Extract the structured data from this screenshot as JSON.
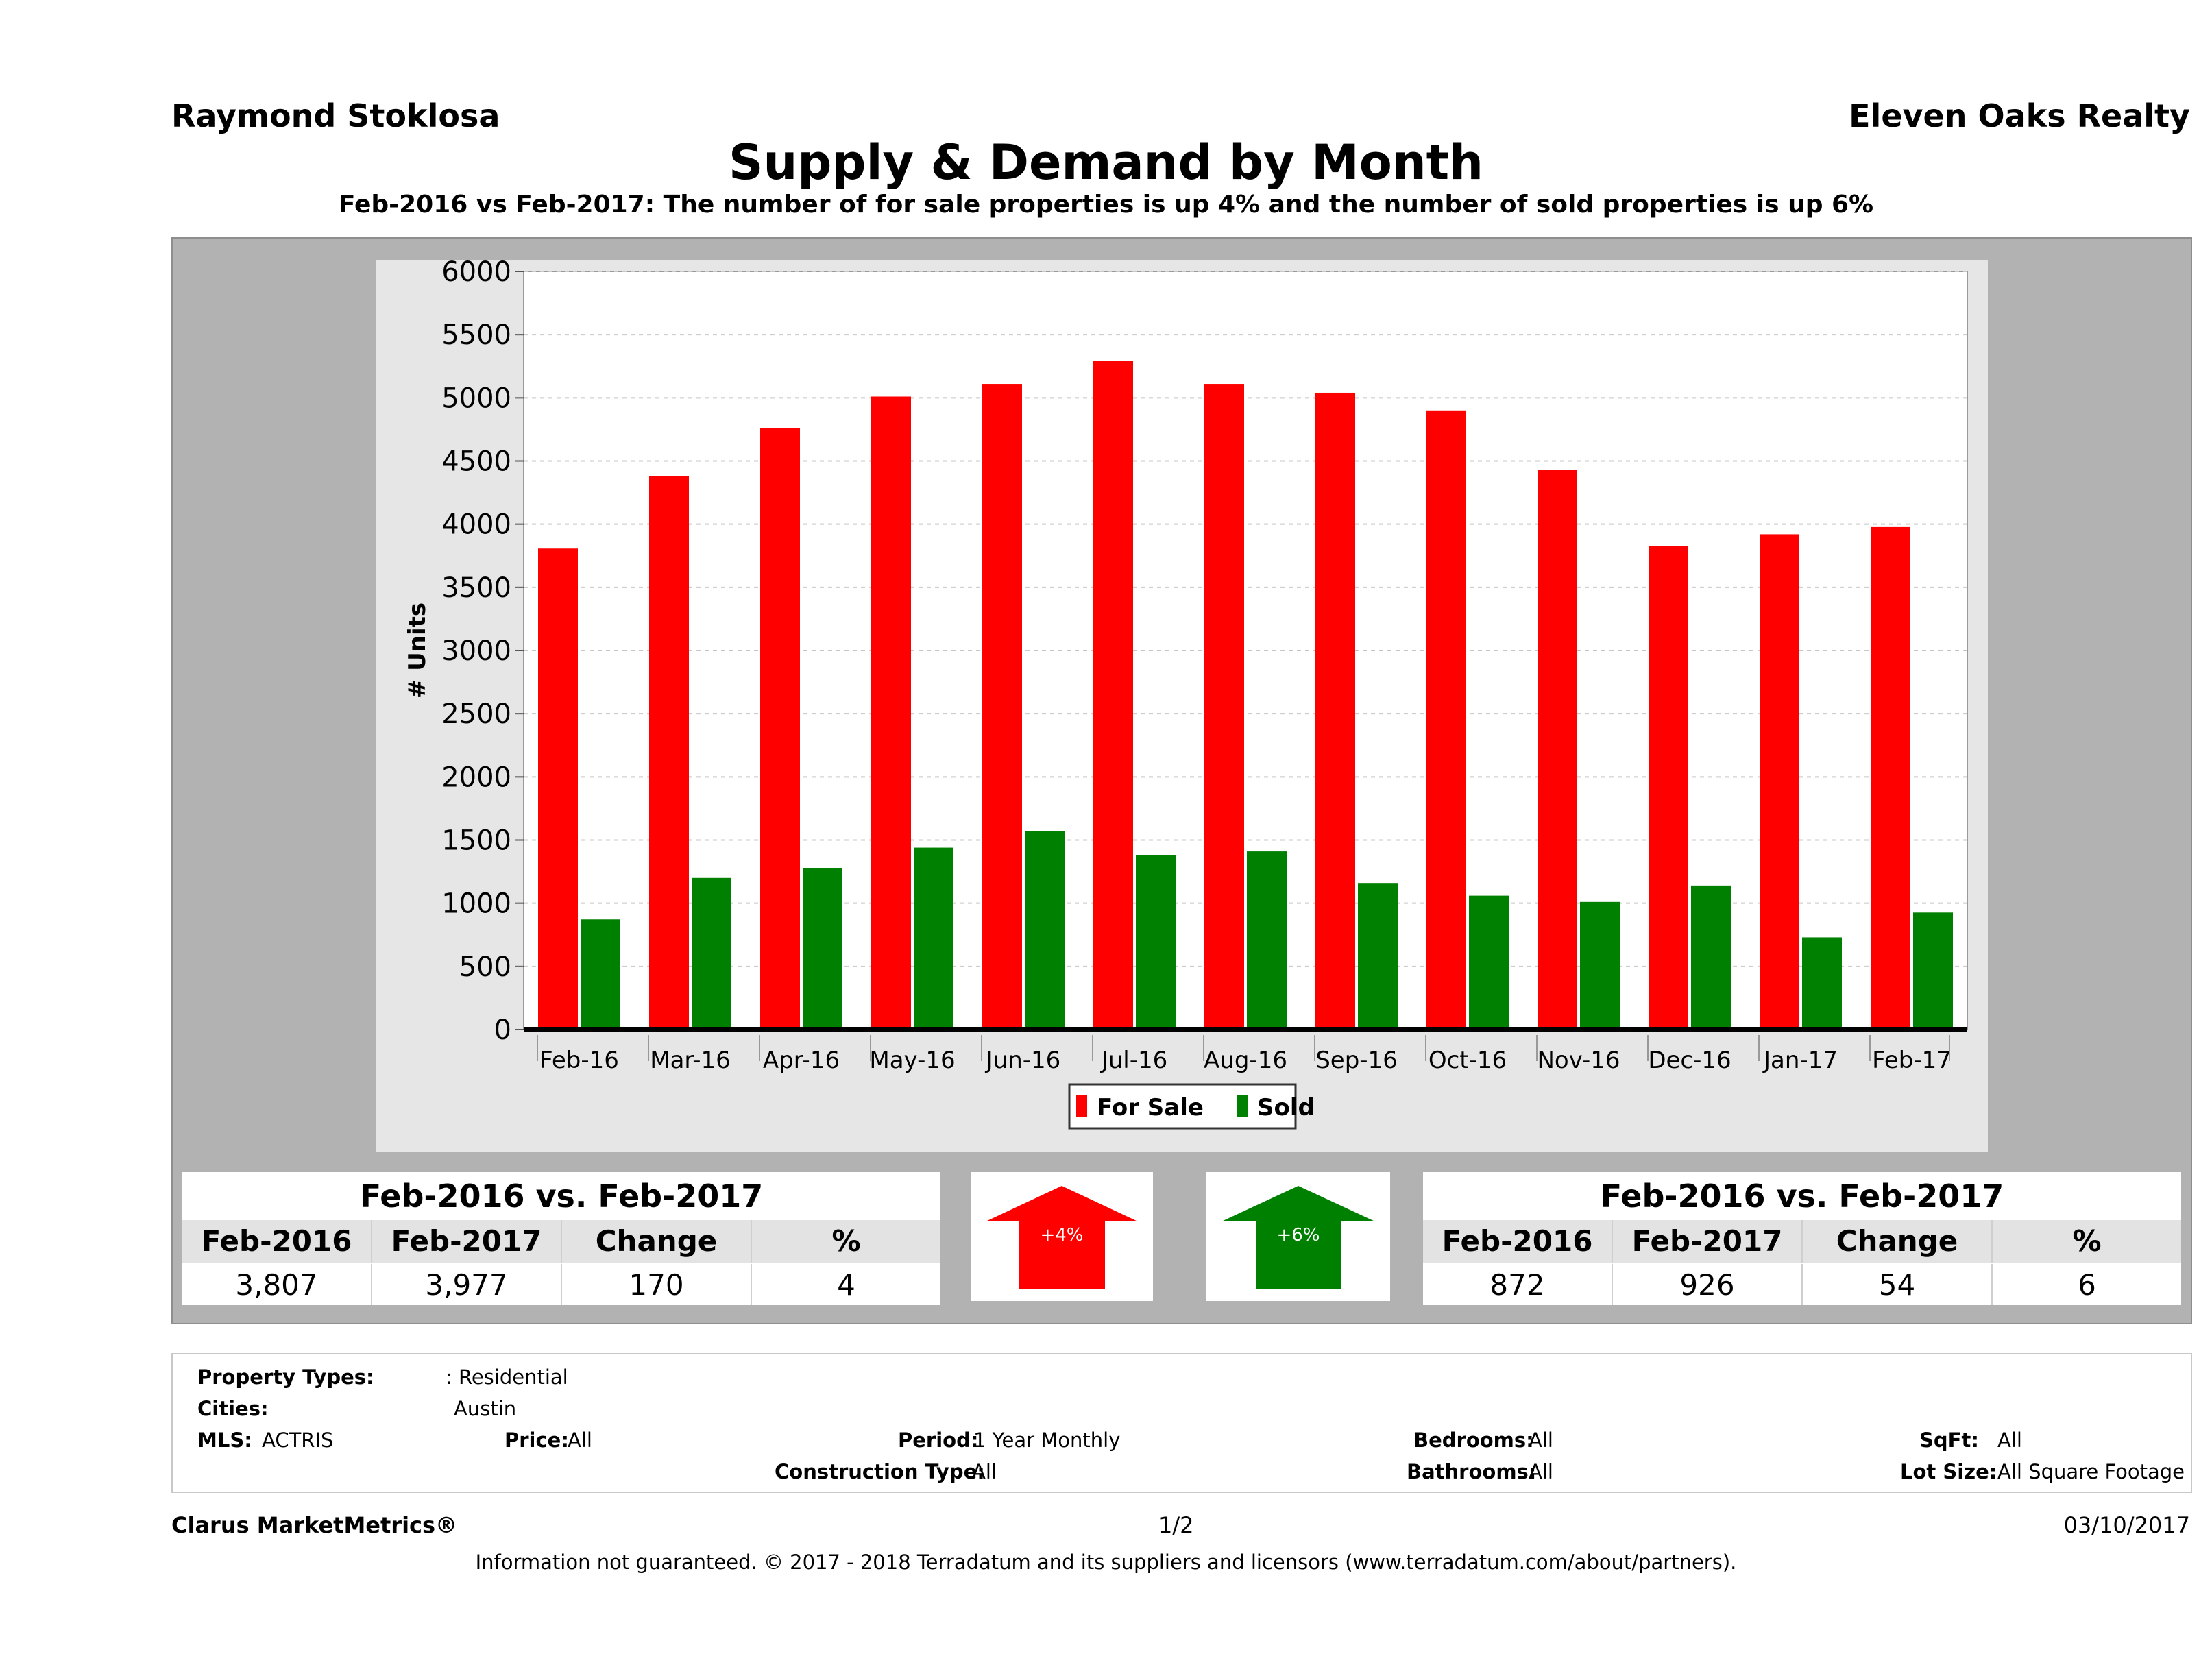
{
  "header": {
    "agent": "Raymond Stoklosa",
    "brokerage": "Eleven Oaks Realty",
    "title": "Supply & Demand by Month",
    "subtitle": "Feb-2016 vs Feb-2017: The number of for sale properties is up 4% and the number of sold properties is up 6%"
  },
  "chart_data": {
    "type": "bar",
    "ylabel": "# Units",
    "xlabel": "",
    "ylim": [
      0,
      6000
    ],
    "yticks": [
      0,
      500,
      1000,
      1500,
      2000,
      2500,
      3000,
      3500,
      4000,
      4500,
      5000,
      5500,
      6000
    ],
    "grid": true,
    "legend_position": "bottom",
    "categories": [
      "Feb-16",
      "Mar-16",
      "Apr-16",
      "May-16",
      "Jun-16",
      "Jul-16",
      "Aug-16",
      "Sep-16",
      "Oct-16",
      "Nov-16",
      "Dec-16",
      "Jan-17",
      "Feb-17"
    ],
    "series": [
      {
        "name": "For Sale",
        "color": "#ff0000",
        "values": [
          3807,
          4380,
          4760,
          5010,
          5110,
          5290,
          5110,
          5040,
          4900,
          4430,
          3830,
          3920,
          3977
        ]
      },
      {
        "name": "Sold",
        "color": "#008000",
        "values": [
          872,
          1200,
          1280,
          1440,
          1570,
          1380,
          1410,
          1160,
          1060,
          1010,
          1140,
          730,
          926
        ]
      }
    ]
  },
  "summary_left": {
    "title": "Feb-2016 vs. Feb-2017",
    "columns": [
      "Feb-2016",
      "Feb-2017",
      "Change",
      "%"
    ],
    "values": [
      "3,807",
      "3,977",
      "170",
      "4"
    ]
  },
  "arrow_left": {
    "label": "+4%",
    "color": "#ff0000"
  },
  "arrow_right": {
    "label": "+6%",
    "color": "#008000"
  },
  "summary_right": {
    "title": "Feb-2016 vs. Feb-2017",
    "columns": [
      "Feb-2016",
      "Feb-2017",
      "Change",
      "%"
    ],
    "values": [
      "872",
      "926",
      "54",
      "6"
    ]
  },
  "filters": {
    "property_types_label": "Property Types:",
    "property_types_value": ": Residential",
    "cities_label": "Cities:",
    "cities_value": "Austin",
    "mls_label": "MLS:",
    "mls_value": "ACTRIS",
    "price_label": "Price:",
    "price_value": "All",
    "period_label": "Period:",
    "period_value": "1 Year Monthly",
    "construction_label": "Construction Type:",
    "construction_value": "All",
    "bedrooms_label": "Bedrooms:",
    "bedrooms_value": "All",
    "bathrooms_label": "Bathrooms:",
    "bathrooms_value": "All",
    "sqft_label": "SqFt:",
    "sqft_value": "All",
    "lotsize_label": "Lot Size:",
    "lotsize_value": "All Square Footage"
  },
  "footer": {
    "product": "Clarus MarketMetrics®",
    "page": "1/2",
    "date": "03/10/2017",
    "disclaimer": "Information not guaranteed. © 2017 - 2018 Terradatum and its suppliers and licensors (www.terradatum.com/about/partners)."
  }
}
